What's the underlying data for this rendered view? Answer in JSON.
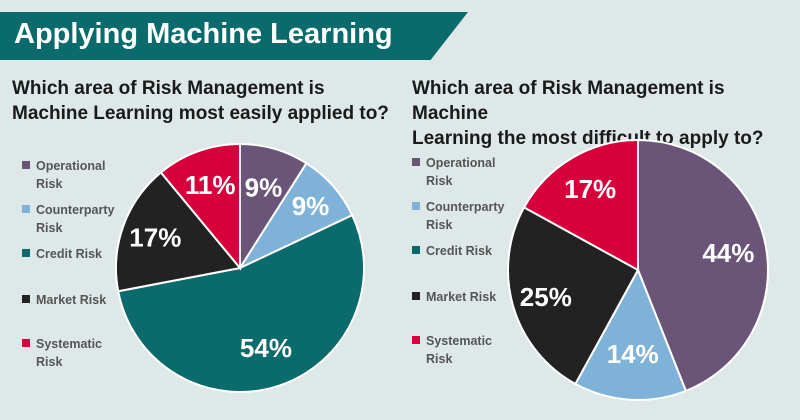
{
  "banner": {
    "title": "Applying Machine Learning"
  },
  "legend": [
    {
      "label": "Operational\nRisk",
      "color": "#6a5578"
    },
    {
      "label": "Counterparty\nRisk",
      "color": "#7fb2d8"
    },
    {
      "label": "Credit Risk",
      "color": "#0a6a6c"
    },
    {
      "label": "Market Risk",
      "color": "#222222"
    },
    {
      "label": "Systematic\nRisk",
      "color": "#d7003a"
    }
  ],
  "charts": [
    {
      "question": "Which area of Risk Management is\nMachine Learning most easily applied to?"
    },
    {
      "question": "Which area of Risk Management is Machine\nLearning the most difficult to apply to?"
    }
  ],
  "chart_data": [
    {
      "type": "pie",
      "categories": [
        "Operational Risk",
        "Counterparty Risk",
        "Credit Risk",
        "Market Risk",
        "Systematic Risk"
      ],
      "values": [
        9,
        9,
        54,
        17,
        11
      ],
      "labels": [
        "9%",
        "9%",
        "54%",
        "17%",
        "11%"
      ],
      "colors": [
        "#6a5578",
        "#7fb2d8",
        "#0a6a6c",
        "#222222",
        "#d7003a"
      ],
      "start_angle_deg": 0,
      "direction": "clockwise"
    },
    {
      "type": "pie",
      "categories": [
        "Operational Risk",
        "Counterparty Risk",
        "Credit Risk",
        "Market Risk",
        "Systematic Risk"
      ],
      "values": [
        44,
        14,
        0,
        25,
        17
      ],
      "labels": [
        "44%",
        "14%",
        "",
        "25%",
        "17%"
      ],
      "colors": [
        "#6a5578",
        "#7fb2d8",
        "#0a6a6c",
        "#222222",
        "#d7003a"
      ],
      "start_angle_deg": 0,
      "direction": "clockwise"
    }
  ]
}
